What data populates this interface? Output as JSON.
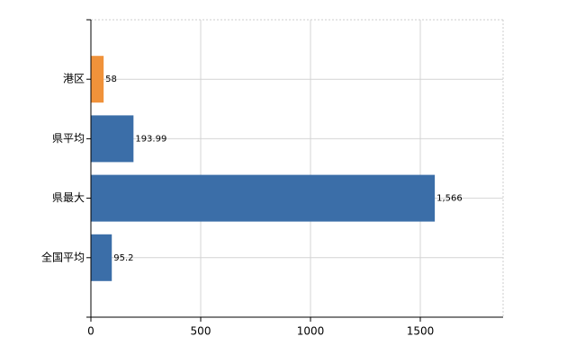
{
  "chart_data": {
    "type": "barh",
    "categories": [
      "港区",
      "県平均",
      "県最大",
      "全国平均"
    ],
    "values": [
      58,
      193.99,
      1566,
      95.2
    ],
    "value_labels": [
      "58",
      "193.99",
      "1,566",
      "95.2"
    ],
    "colors": [
      "#f0923a",
      "#3b6ea8",
      "#3b6ea8",
      "#3b6ea8"
    ],
    "xlim": [
      0,
      1877
    ],
    "xticks": [
      0,
      500,
      1000,
      1500
    ],
    "grid": true
  }
}
